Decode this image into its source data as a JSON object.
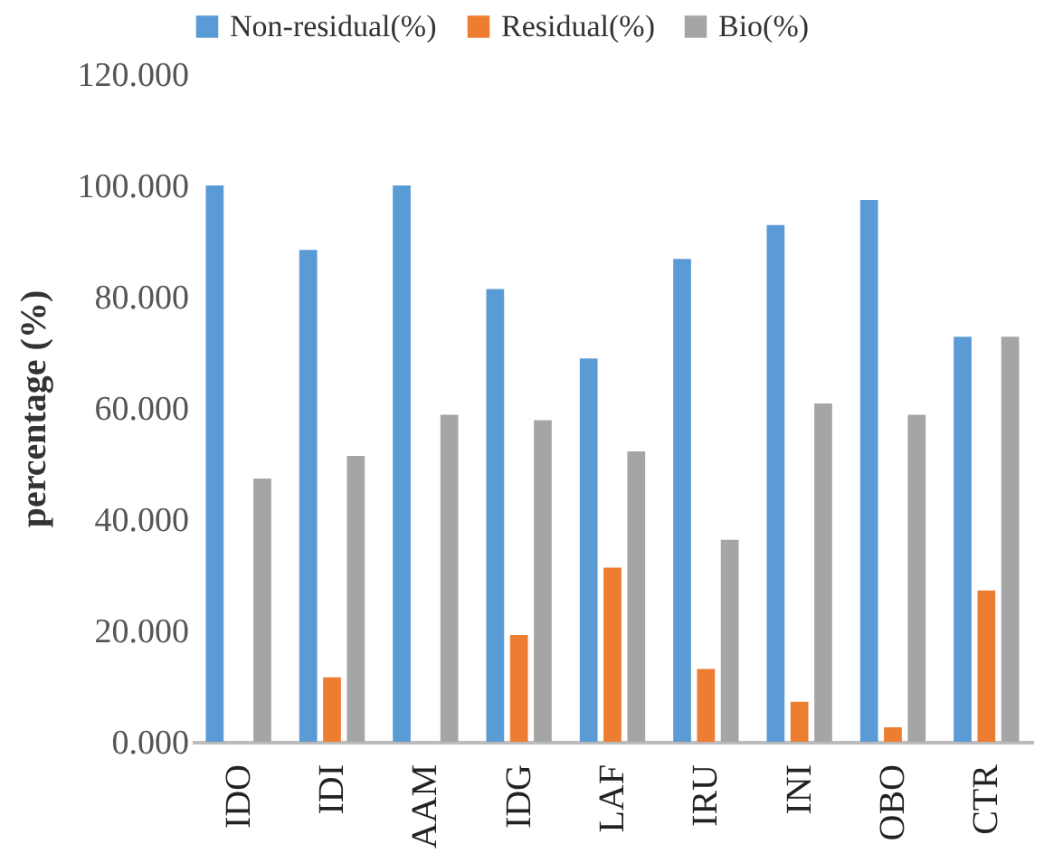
{
  "chart_data": {
    "type": "bar",
    "ylabel": "percentage (%)",
    "categories": [
      "IDO",
      "IDI",
      "AAM",
      "IDG",
      "LAF",
      "IRU",
      "INI",
      "OBO",
      "CTR"
    ],
    "series": [
      {
        "name": "Non-residual(%)",
        "color": "#5b9bd5",
        "values": [
          100,
          88.4,
          100,
          81.4,
          68.9,
          86.8,
          92.9,
          97.4,
          72.8
        ]
      },
      {
        "name": "Residual(%)",
        "color": "#ed7d31",
        "values": [
          0,
          11.6,
          0,
          19.2,
          31.3,
          13.1,
          7.2,
          2.6,
          27.2
        ]
      },
      {
        "name": "Bio(%)",
        "color": "#a5a5a5",
        "values": [
          47.3,
          51.4,
          58.8,
          57.8,
          52.2,
          36.3,
          60.8,
          58.8,
          72.8
        ]
      }
    ],
    "ylim": [
      0,
      120
    ],
    "yticks": [
      {
        "value": 0,
        "label": "0.000"
      },
      {
        "value": 20,
        "label": "20.000"
      },
      {
        "value": 40,
        "label": "40.000"
      },
      {
        "value": 60,
        "label": "60.000"
      },
      {
        "value": 80,
        "label": "80.000"
      },
      {
        "value": 100,
        "label": "100.000"
      },
      {
        "value": 120,
        "label": "120.000"
      }
    ],
    "grid": false,
    "legend": "top"
  }
}
